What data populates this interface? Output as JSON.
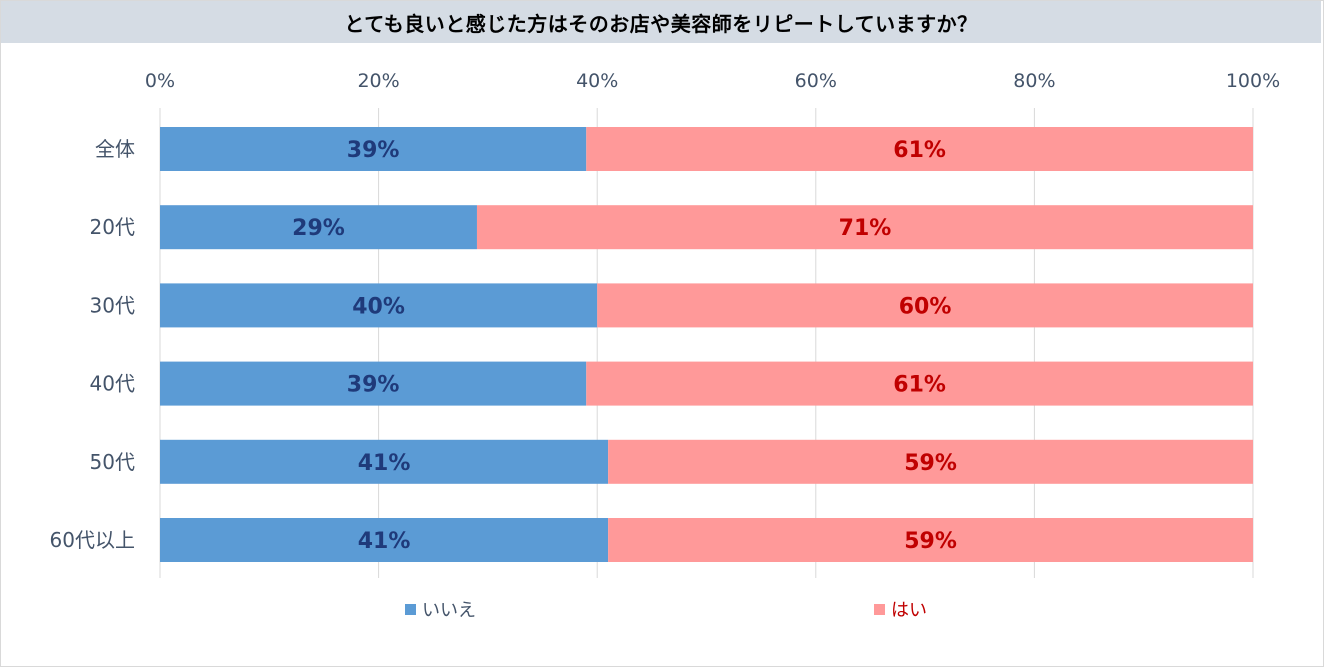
{
  "chart_data": {
    "type": "bar",
    "orientation": "horizontal",
    "stacked": true,
    "title": "とても良いと感じた方はそのお店や美容師をリピートしていますか？",
    "categories": [
      "全体",
      "20代",
      "30代",
      "40代",
      "50代",
      "60代以上"
    ],
    "series": [
      {
        "name": "いいえ",
        "color": "#5b9bd5",
        "label_color": "#1f3a7a",
        "values": [
          39,
          29,
          40,
          39,
          41,
          41
        ],
        "labels": [
          "39%",
          "29%",
          "40%",
          "39%",
          "41%",
          "41%"
        ]
      },
      {
        "name": "はい",
        "color": "#ff9999",
        "label_color": "#c00000",
        "values": [
          61,
          71,
          60,
          61,
          59,
          59
        ],
        "labels": [
          "61%",
          "71%",
          "60%",
          "61%",
          "59%",
          "59%"
        ]
      }
    ],
    "xlim": [
      0,
      100
    ],
    "xticks": [
      0,
      20,
      40,
      60,
      80,
      100
    ],
    "xtick_labels": [
      "0%",
      "20%",
      "40%",
      "60%",
      "80%",
      "100%"
    ],
    "grid": true,
    "legend_position": "bottom"
  }
}
